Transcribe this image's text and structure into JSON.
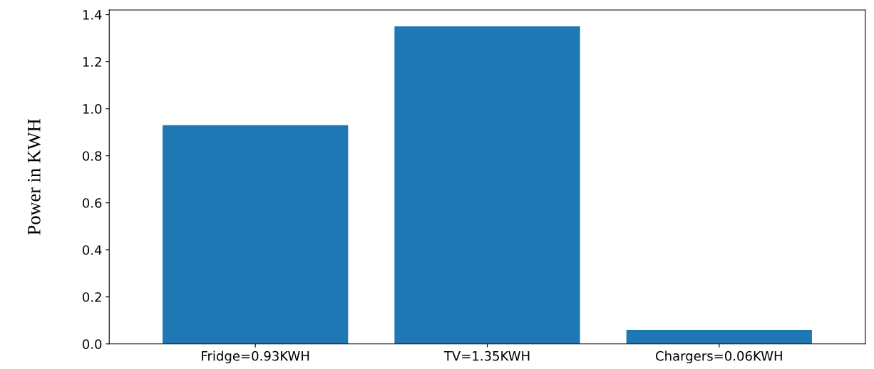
{
  "chart_data": {
    "type": "bar",
    "ylabel": "Power in KWH",
    "categories": [
      "Fridge=0.93KWH",
      "TV=1.35KWH",
      "Chargers=0.06KWH"
    ],
    "values": [
      0.93,
      1.35,
      0.06
    ],
    "color": "#1f77b4",
    "ylim": [
      0,
      1.42
    ],
    "yticks": [
      {
        "value": 0,
        "label": "0.0"
      },
      0.2,
      0.4,
      0.6,
      0.8,
      {
        "value": 1,
        "label": "1.0"
      },
      1.2,
      1.4
    ],
    "grid": false
  }
}
